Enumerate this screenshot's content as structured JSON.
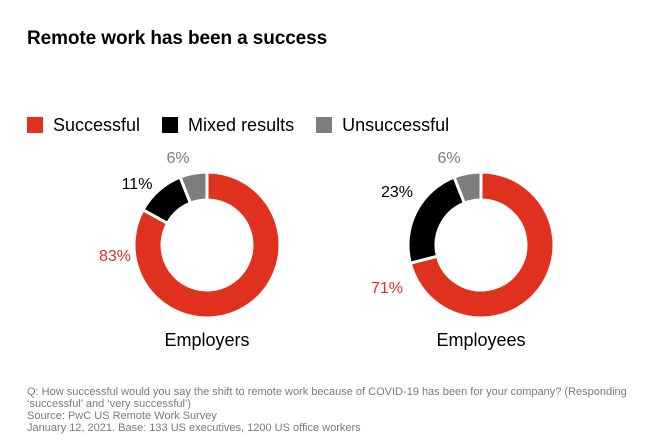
{
  "title": "Remote work has been a success",
  "legend": [
    {
      "label": "Successful",
      "color": "#e0301e"
    },
    {
      "label": "Mixed results",
      "color": "#000000"
    },
    {
      "label": "Unsuccessful",
      "color": "#7d7d7d"
    }
  ],
  "chart_data": [
    {
      "type": "pie",
      "label": "Employers",
      "categories": [
        "Successful",
        "Mixed results",
        "Unsuccessful"
      ],
      "values": [
        83,
        11,
        6
      ],
      "value_labels": [
        "83%",
        "11%",
        "6%"
      ],
      "colors": [
        "#e0301e",
        "#000000",
        "#7d7d7d"
      ],
      "label_colors": [
        "#e0301e",
        "#000000",
        "#7d7d7d"
      ]
    },
    {
      "type": "pie",
      "label": "Employees",
      "categories": [
        "Successful",
        "Mixed results",
        "Unsuccessful"
      ],
      "values": [
        71,
        23,
        6
      ],
      "value_labels": [
        "71%",
        "23%",
        "6%"
      ],
      "colors": [
        "#e0301e",
        "#000000",
        "#7d7d7d"
      ],
      "label_colors": [
        "#e0301e",
        "#000000",
        "#7d7d7d"
      ]
    }
  ],
  "notes": {
    "question_line1": "Q: How successful would you say the shift to remote work because of COVID-19 has been for your company? (Responding",
    "question_line2": "‘successful’ and ‘very successful’)",
    "source": "Source: PwC US Remote Work Survey",
    "base": "January 12, 2021. Base: 133 US executives, 1200 US office workers"
  }
}
